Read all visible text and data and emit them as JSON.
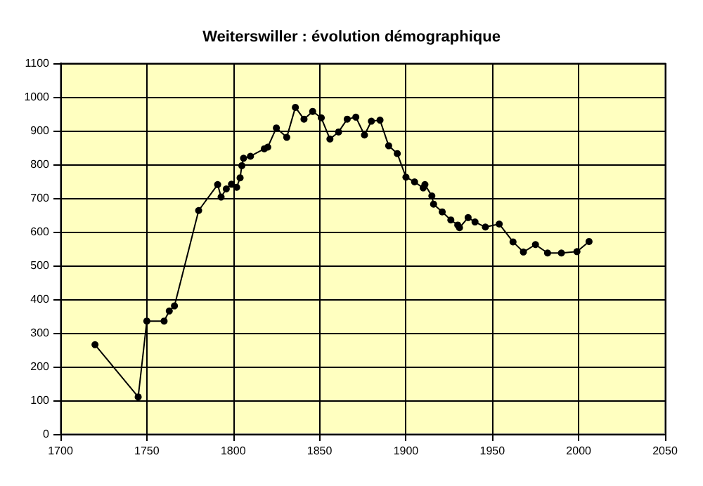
{
  "chart_data": {
    "type": "line",
    "title": "Weiterswiller : évolution démographique",
    "x": [
      1720,
      1745,
      1750,
      1760,
      1763,
      1766,
      1780,
      1791,
      1793,
      1796,
      1799,
      1802,
      1804,
      1805,
      1806,
      1810,
      1818,
      1820,
      1825,
      1831,
      1836,
      1841,
      1846,
      1851,
      1856,
      1861,
      1866,
      1871,
      1876,
      1880,
      1885,
      1890,
      1895,
      1900,
      1905,
      1910,
      1911,
      1915,
      1916,
      1921,
      1926,
      1930,
      1931,
      1936,
      1940,
      1946,
      1954,
      1962,
      1968,
      1975,
      1982,
      1990,
      1999,
      2006
    ],
    "series": [
      {
        "color": "#000000",
        "values": [
          265,
          110,
          335,
          335,
          365,
          380,
          663,
          740,
          703,
          727,
          741,
          732,
          760,
          796,
          818,
          824,
          846,
          851,
          908,
          880,
          969,
          934,
          957,
          938,
          875,
          896,
          934,
          940,
          887,
          928,
          931,
          855,
          832,
          762,
          748,
          730,
          740,
          706,
          682,
          659,
          635,
          620,
          612,
          642,
          629,
          614,
          623,
          570,
          540,
          562,
          537,
          537,
          541,
          571
        ]
      }
    ],
    "xlim": [
      1700,
      2050
    ],
    "xticks": [
      1700,
      1750,
      1800,
      1850,
      1900,
      1950,
      2000,
      2050
    ],
    "ylim": [
      0,
      1100
    ],
    "yticks": [
      0,
      100,
      200,
      300,
      400,
      500,
      600,
      700,
      800,
      900,
      1000,
      1100
    ],
    "grid": true,
    "marker": "circle",
    "line_style": "solid"
  }
}
